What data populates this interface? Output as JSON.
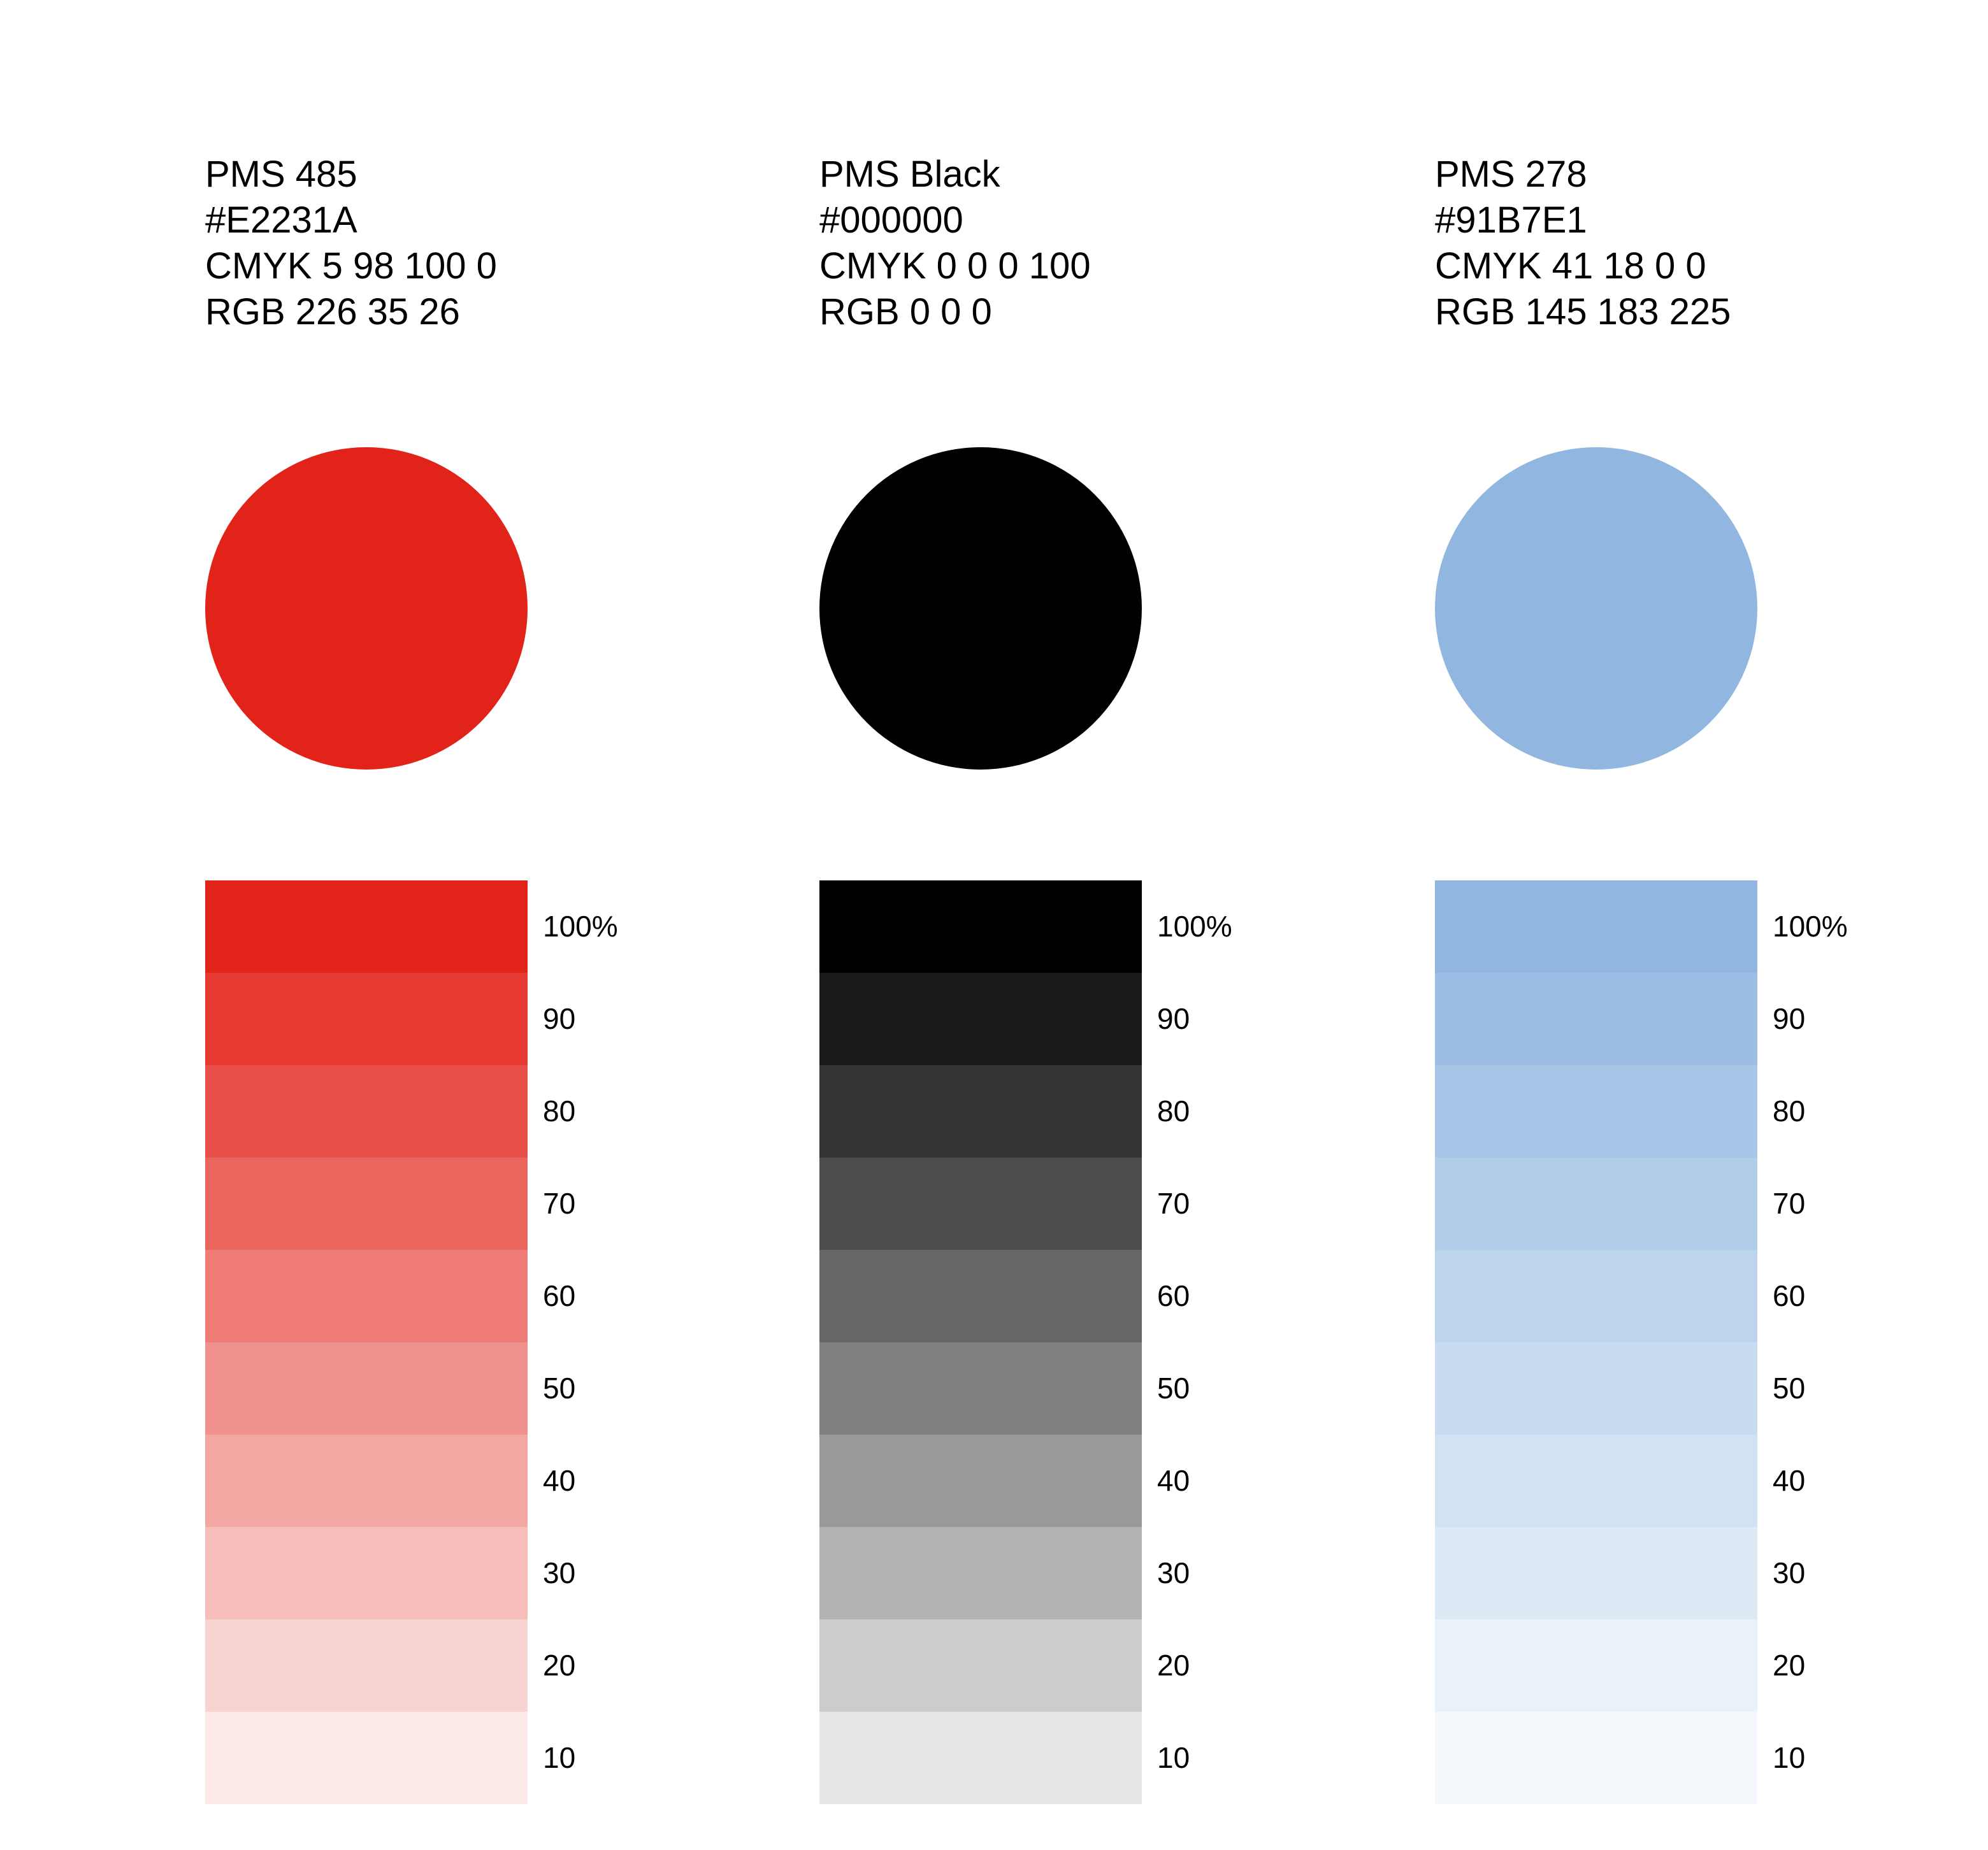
{
  "swatches": [
    {
      "pms": "PMS 485",
      "hex": "#E2231A",
      "cmyk": "CMYK 5 98 100 0",
      "rgb_text": "RGB 226 35 26",
      "color": "#E2231A"
    },
    {
      "pms": "PMS Black",
      "hex": "#000000",
      "cmyk": "CMYK 0 0 0 100",
      "rgb_text": "RGB 0 0 0",
      "color": "#000000"
    },
    {
      "pms": "PMS 278",
      "hex": "#91B7E1",
      "cmyk": "CMYK 41 18 0 0",
      "rgb_text": "RGB 145 183 225",
      "color": "#91B7E1"
    }
  ],
  "tints": [
    {
      "label": "100%",
      "percent": 100
    },
    {
      "label": "90",
      "percent": 90
    },
    {
      "label": "80",
      "percent": 80
    },
    {
      "label": "70",
      "percent": 70
    },
    {
      "label": "60",
      "percent": 60
    },
    {
      "label": "50",
      "percent": 50
    },
    {
      "label": "40",
      "percent": 40
    },
    {
      "label": "30",
      "percent": 30
    },
    {
      "label": "20",
      "percent": 20
    },
    {
      "label": "10",
      "percent": 10
    }
  ]
}
